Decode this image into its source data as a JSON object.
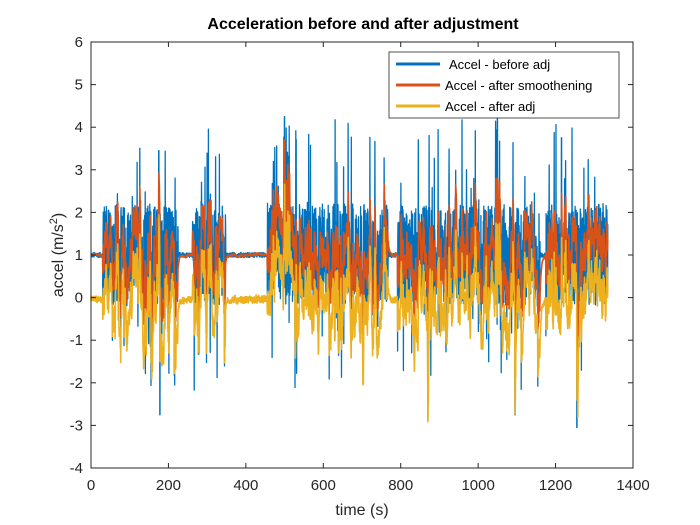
{
  "chart_data": {
    "type": "line",
    "title": "Acceleration before and after adjustment",
    "xlabel": "time (s)",
    "ylabel": "accel (m/s",
    "ylabel_sup": "2",
    "ylabel_end": ")",
    "xlim": [
      0,
      1400
    ],
    "ylim": [
      -4,
      6
    ],
    "xticks": [
      0,
      200,
      400,
      600,
      800,
      1000,
      1200,
      1400
    ],
    "yticks": [
      -4,
      -3,
      -2,
      -1,
      0,
      1,
      2,
      3,
      4,
      5,
      6
    ],
    "grid": false,
    "legend_position": "top-right",
    "series": [
      {
        "name": "Accel - before adj",
        "color": "#0072BD",
        "baseline": 1.0
      },
      {
        "name": "Accel - after smoothening",
        "color": "#D95319",
        "baseline": 1.0
      },
      {
        "name": "Accel - after adj",
        "color": "#EDB120",
        "baseline": 0.0
      }
    ],
    "active_segments": [
      [
        30,
        225
      ],
      [
        262,
        348
      ],
      [
        455,
        768
      ],
      [
        792,
        1160
      ],
      [
        1175,
        1335
      ]
    ],
    "quiet_segments": [
      [
        0,
        30
      ],
      [
        225,
        262
      ],
      [
        348,
        455
      ],
      [
        768,
        792
      ],
      [
        1160,
        1175
      ]
    ],
    "extremes": [
      {
        "x": 175,
        "y": 3.45
      },
      {
        "x": 178,
        "y": -2.75
      },
      {
        "x": 500,
        "y": 4.25
      },
      {
        "x": 870,
        "y": -2.85
      },
      {
        "x": 1050,
        "y": 4.2
      },
      {
        "x": 1095,
        "y": -2.75
      },
      {
        "x": 1255,
        "y": -3.05
      },
      {
        "x": 1215,
        "y": 3.75
      }
    ]
  }
}
